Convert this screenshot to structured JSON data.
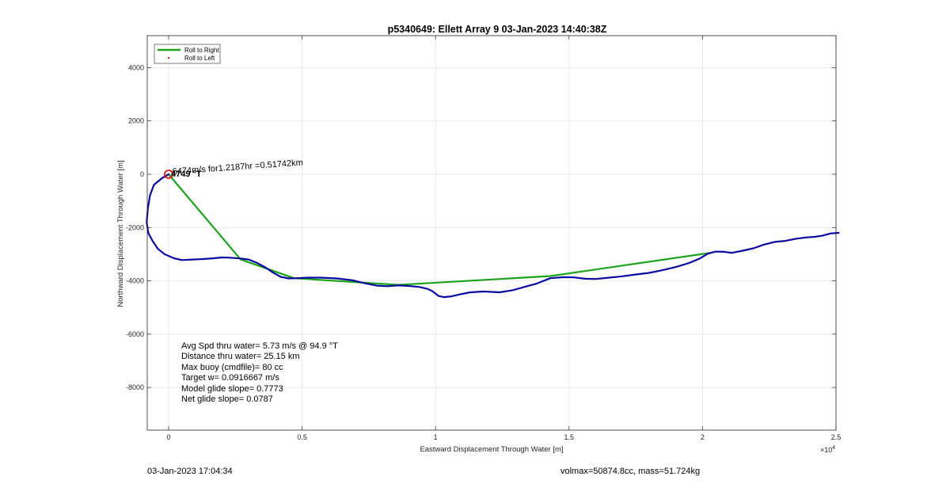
{
  "chart_data": {
    "type": "line",
    "title": "p5340649: Ellett Array 9 03-Jan-2023 14:40:38Z",
    "xlabel": "Eastward Displacement Through Water [m]",
    "ylabel": "Northward Displacement Through Water [m]",
    "x_multiplier_label": "×10",
    "x_multiplier_exp": "4",
    "xlim": [
      -800,
      25000
    ],
    "ylim": [
      -9600,
      5200
    ],
    "grid": true,
    "x_ticks": [
      0,
      5000,
      10000,
      15000,
      20000,
      25000
    ],
    "x_tick_labels": [
      "0",
      "0.5",
      "1",
      "1.5",
      "2",
      "2.5"
    ],
    "y_ticks": [
      4000,
      2000,
      0,
      -2000,
      -4000,
      -6000,
      -8000
    ],
    "y_tick_labels": [
      "4000",
      "2000",
      "0",
      "-2000",
      "-4000",
      "-6000",
      "-8000"
    ],
    "legend": {
      "placement": "top-left",
      "entries": [
        {
          "label": "Roll to Right",
          "color": "#1aa31a",
          "style": "line"
        },
        {
          "label": "Roll to Left",
          "color": "#e01010",
          "style": "dot"
        }
      ]
    },
    "series": [
      {
        "color": "#1aa31a",
        "style": "line",
        "x": [
          0,
          2700,
          4700,
          8600,
          14300,
          20300
        ],
        "y": [
          0,
          -3200,
          -3900,
          -4150,
          -3820,
          -2950
        ]
      },
      {
        "color": "#0a0aa0",
        "style": "line",
        "x": [
          0,
          -250,
          -550,
          -700,
          -780,
          -820,
          -760,
          -600,
          -400,
          -150,
          200,
          500,
          900,
          1300,
          1700,
          2000,
          2300,
          2700,
          3000,
          3300,
          3600,
          3900,
          4200,
          4500,
          4800,
          5200,
          5700,
          6300,
          6900,
          7400,
          7800,
          8200,
          8600,
          9000,
          9400,
          9700,
          9900,
          10100,
          10300,
          10600,
          10900,
          11300,
          11800,
          12400,
          12900,
          13400,
          13800,
          14300,
          14800,
          15200,
          15600,
          16000,
          16500,
          17000,
          17500,
          18000,
          18500,
          19000,
          19500,
          19900,
          20200,
          20500,
          20800,
          21100,
          21500,
          21900,
          22300,
          22700,
          23100,
          23500,
          23900,
          24200,
          24500,
          24800,
          25100
        ],
        "y": [
          0,
          -150,
          -400,
          -800,
          -1300,
          -1800,
          -2200,
          -2500,
          -2800,
          -3000,
          -3150,
          -3220,
          -3200,
          -3180,
          -3150,
          -3120,
          -3130,
          -3160,
          -3200,
          -3320,
          -3480,
          -3680,
          -3850,
          -3910,
          -3900,
          -3880,
          -3880,
          -3910,
          -3980,
          -4100,
          -4180,
          -4200,
          -4170,
          -4190,
          -4230,
          -4300,
          -4400,
          -4560,
          -4610,
          -4580,
          -4510,
          -4430,
          -4400,
          -4430,
          -4350,
          -4210,
          -4100,
          -3900,
          -3860,
          -3870,
          -3920,
          -3930,
          -3880,
          -3830,
          -3760,
          -3700,
          -3600,
          -3480,
          -3330,
          -3160,
          -2980,
          -2900,
          -2910,
          -2950,
          -2870,
          -2780,
          -2640,
          -2540,
          -2500,
          -2420,
          -2370,
          -2350,
          -2300,
          -2220,
          -2200
        ]
      }
    ],
    "annotations": {
      "near_start_text": "6474m/s for1.2187hr =0.51742km",
      "overlap_text": "4749 °T",
      "start_marker": {
        "x": 0,
        "y": 0,
        "color": "#dd1111",
        "shape": "circle"
      },
      "stats": [
        "Avg Spd thru water=  5.73 m/s @  94.9 °T",
        "Distance thru water= 25.15 km",
        "Max buoy (cmdfile)= 80 cc",
        "Target w= 0.0916667 m/s",
        "Model glide slope= 0.7773",
        "Net glide slope= 0.0787"
      ]
    }
  },
  "footer": {
    "timestamp": "03-Jan-2023 17:04:34",
    "summary": "volmax=50874.8cc, mass=51.724kg"
  }
}
